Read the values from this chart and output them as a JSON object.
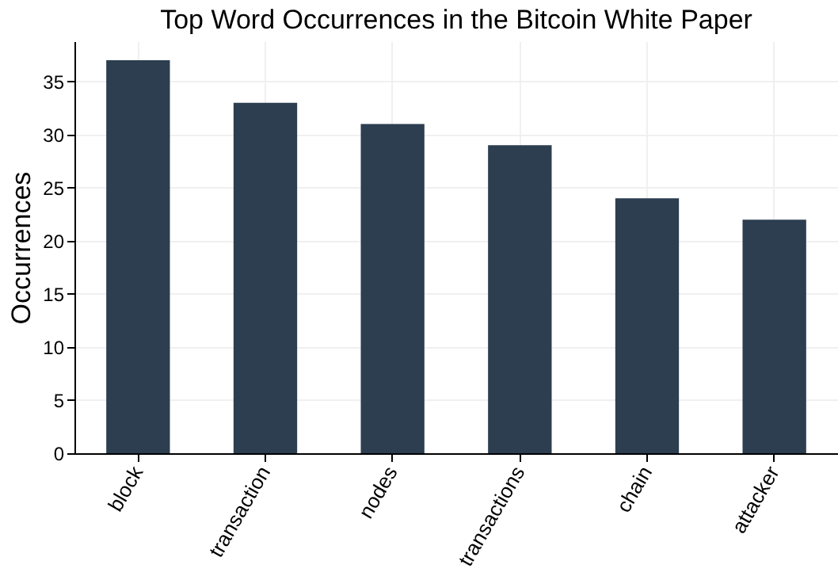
{
  "chart_data": {
    "type": "bar",
    "title": "Top Word Occurrences in the Bitcoin White Paper",
    "ylabel": "Occurrences",
    "categories": [
      "block",
      "transaction",
      "nodes",
      "transactions",
      "chain",
      "attacker"
    ],
    "values": [
      37,
      33,
      31,
      29,
      24,
      22
    ],
    "color": "#2c3e50",
    "ylim": [
      0,
      38.8
    ],
    "yticks": [
      0,
      5,
      10,
      15,
      20,
      25,
      30,
      35
    ],
    "grid": true
  }
}
